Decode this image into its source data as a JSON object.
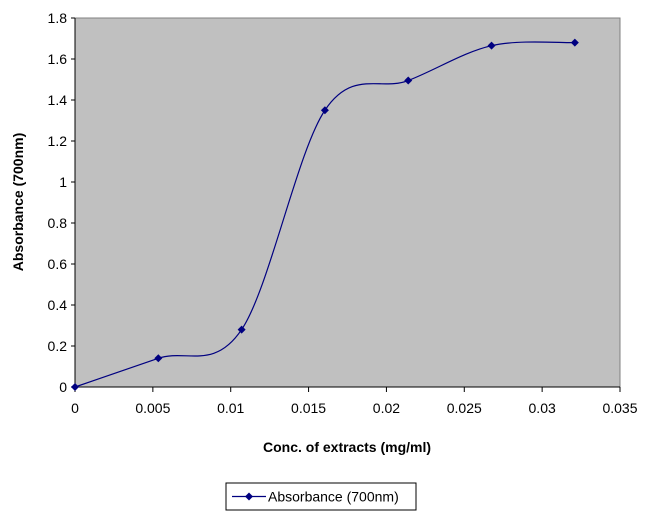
{
  "chart_data": {
    "type": "line",
    "title": "",
    "xlabel": "Conc. of extracts (mg/ml)",
    "ylabel": "Absorbance (700nm)",
    "xlim": [
      0,
      0.035
    ],
    "ylim": [
      0,
      1.8
    ],
    "x_ticks": [
      "0",
      "0.005",
      "0.01",
      "0.015",
      "0.02",
      "0.025",
      "0.03",
      "0.035"
    ],
    "y_ticks": [
      "0",
      "0.2",
      "0.4",
      "0.6",
      "0.8",
      "1",
      "1.2",
      "1.4",
      "1.6",
      "1.8"
    ],
    "grid": false,
    "legend_position": "bottom",
    "smooth": true,
    "series": [
      {
        "name": "Absorbance (700nm)",
        "color": "#000080",
        "marker": "diamond",
        "x": [
          0,
          0.00535,
          0.0107,
          0.01605,
          0.0214,
          0.02675,
          0.0321
        ],
        "y": [
          0,
          0.14,
          0.28,
          1.35,
          1.495,
          1.665,
          1.68
        ]
      }
    ],
    "plot_background": "#c0c0c0"
  }
}
